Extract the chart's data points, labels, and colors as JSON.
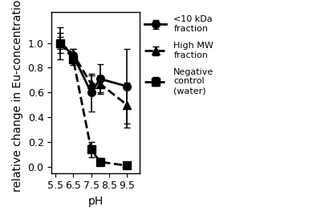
{
  "title": "",
  "xlabel": "pH",
  "ylabel": "relative change in Eu-concentration",
  "xlim": [
    5.3,
    10.2
  ],
  "ylim": [
    -0.05,
    1.25
  ],
  "xticks": [
    5.5,
    6.5,
    7.5,
    8.5,
    9.5
  ],
  "yticks": [
    0.0,
    0.2,
    0.4,
    0.6,
    0.8,
    1.0
  ],
  "series": [
    {
      "label": "<10 kDa\nfraction",
      "x": [
        5.8,
        6.5,
        7.5,
        8.0,
        9.5
      ],
      "y": [
        1.0,
        0.9,
        0.6,
        0.71,
        0.65
      ],
      "yerr": [
        0.08,
        0.05,
        0.15,
        0.12,
        0.3
      ],
      "linestyle": "-",
      "marker": "o",
      "color": "#000000",
      "linewidth": 2.0,
      "markersize": 7,
      "fillstyle": "full"
    },
    {
      "label": "High MW\nfraction",
      "x": [
        5.8,
        6.5,
        7.5,
        8.0,
        9.5
      ],
      "y": [
        1.0,
        0.91,
        0.67,
        0.67,
        0.5
      ],
      "yerr": [
        0.05,
        0.04,
        0.07,
        0.07,
        0.18
      ],
      "linestyle": "--",
      "marker": "^",
      "color": "#000000",
      "linewidth": 2.0,
      "markersize": 7,
      "fillstyle": "full"
    },
    {
      "label": "Negative\ncontrol\n(water)",
      "x": [
        5.8,
        6.5,
        7.5,
        8.0,
        9.5
      ],
      "y": [
        1.0,
        0.87,
        0.14,
        0.04,
        0.01
      ],
      "yerr": [
        0.13,
        0.05,
        0.06,
        0.03,
        0.01
      ],
      "linestyle": "--",
      "marker": "s",
      "color": "#000000",
      "linewidth": 2.0,
      "markersize": 7,
      "fillstyle": "full"
    }
  ],
  "legend_fontsize": 8,
  "axis_fontsize": 10,
  "tick_fontsize": 9,
  "background_color": "#ffffff",
  "figure_facecolor": "#ffffff"
}
